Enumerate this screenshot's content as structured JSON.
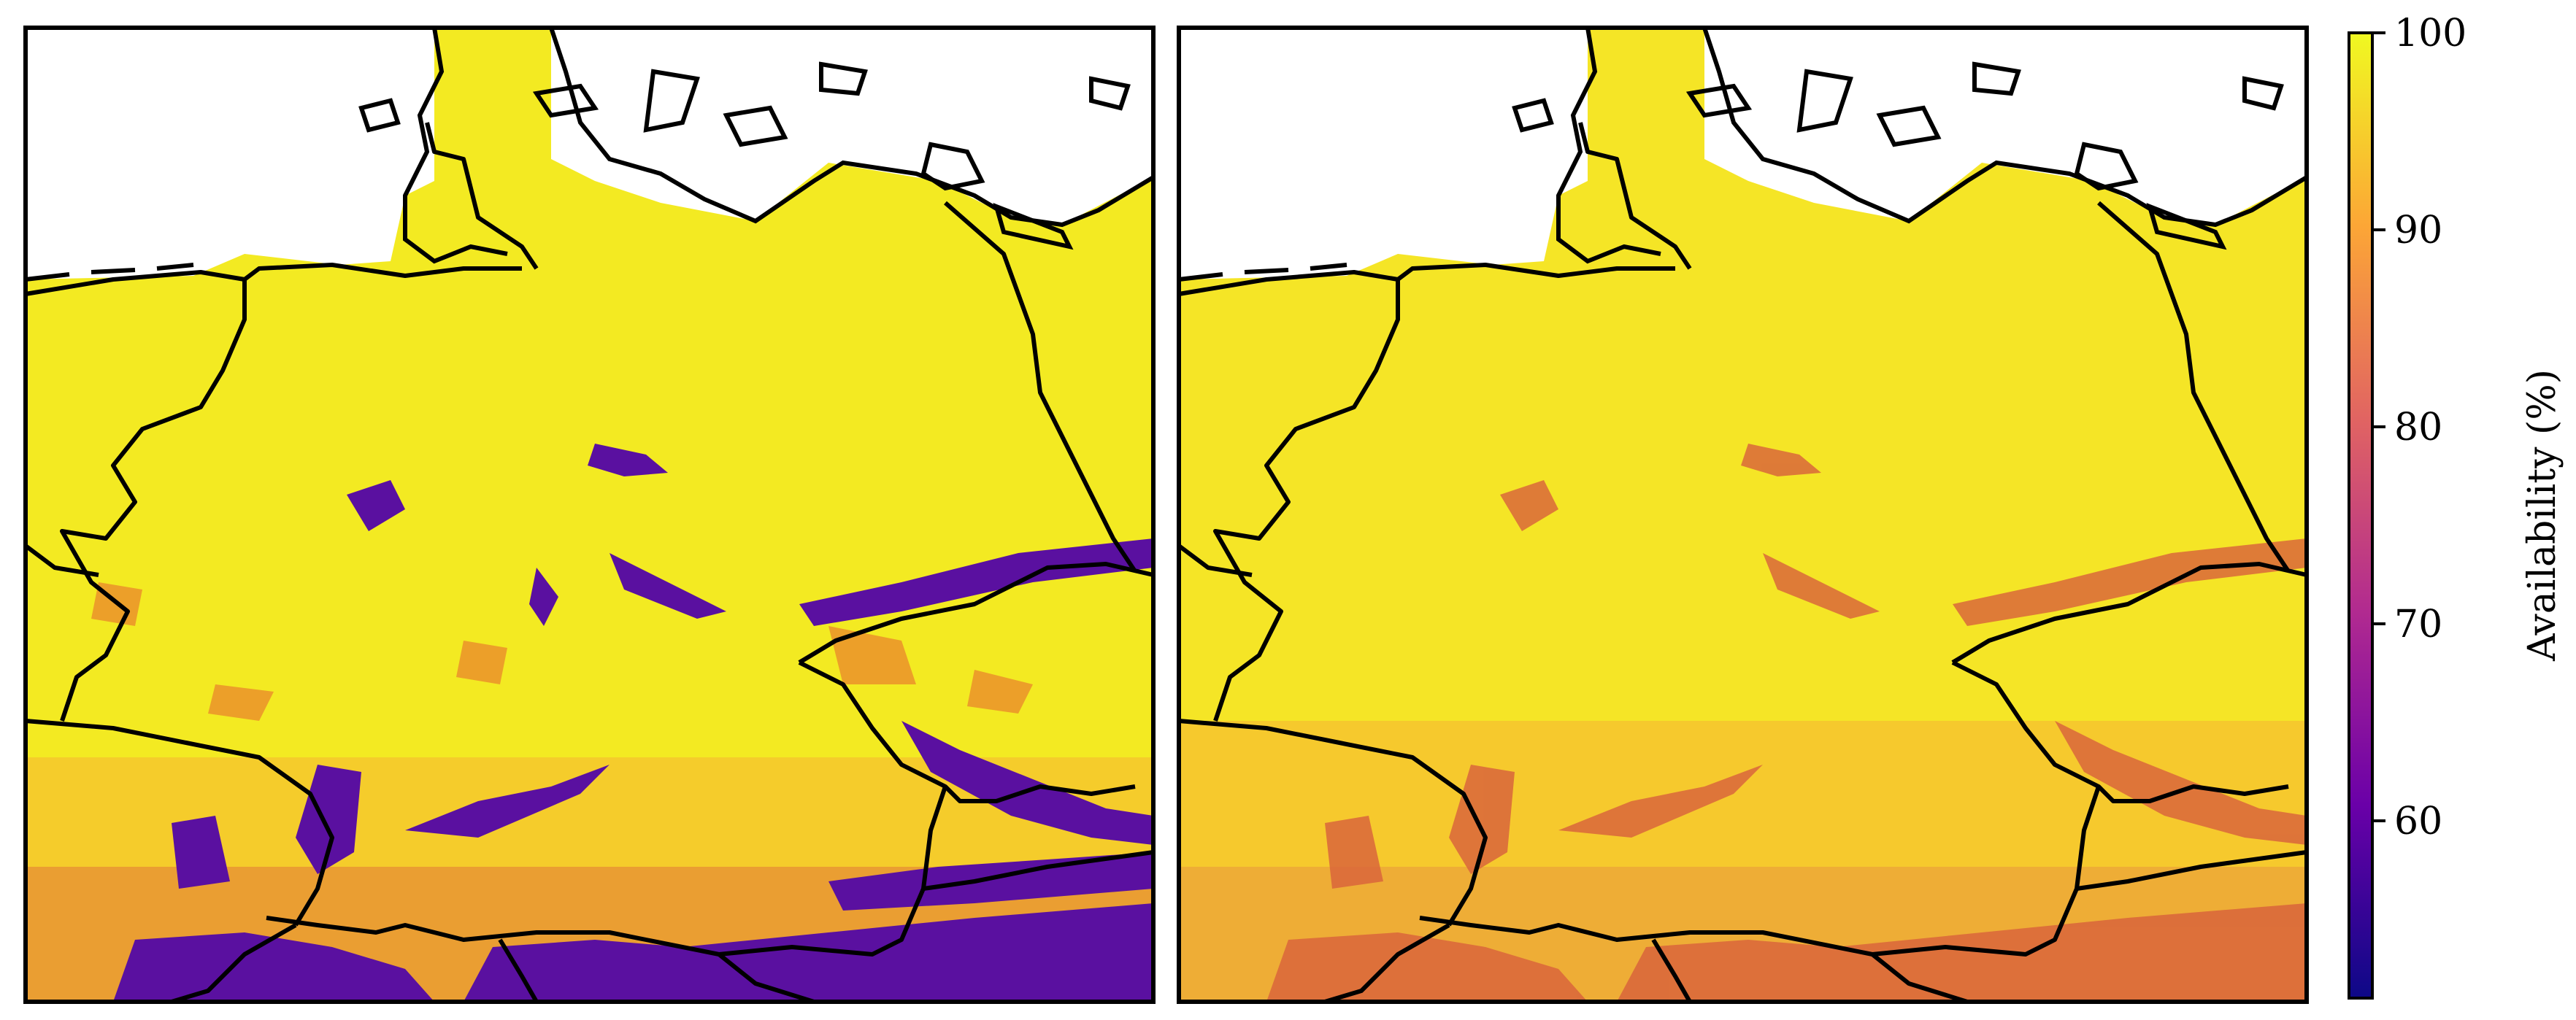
{
  "colorbar": {
    "label": "Availability (%)",
    "min": 51,
    "max": 100,
    "ticks": [
      60,
      70,
      80,
      90,
      100
    ],
    "colormap": "plasma",
    "colormap_stops": [
      "#0d0887",
      "#6a00a8",
      "#b12a90",
      "#e16462",
      "#fca636",
      "#f0f921"
    ]
  },
  "panels": [
    {
      "id": "left",
      "region": "Germany and neighbouring countries",
      "min_availability_shown": 55
    },
    {
      "id": "right",
      "region": "Germany and neighbouring countries",
      "min_availability_shown": 75
    }
  ],
  "colors": {
    "land_bg": "#f3ea22",
    "sea": "#ffffff",
    "border": "#000000"
  }
}
